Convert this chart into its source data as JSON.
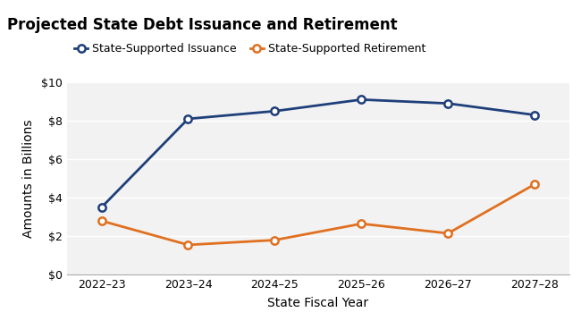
{
  "title": "Projected State Debt Issuance and Retirement",
  "xlabel": "State Fiscal Year",
  "ylabel": "Amounts in Billions",
  "categories": [
    "2022–23",
    "2023–24",
    "2024–25",
    "2025–26",
    "2026–27",
    "2027–28"
  ],
  "issuance": [
    3.5,
    8.1,
    8.5,
    9.1,
    8.9,
    8.3
  ],
  "retirement": [
    2.8,
    1.55,
    1.8,
    2.65,
    2.15,
    4.7
  ],
  "issuance_color": "#1f3f7a",
  "retirement_color": "#e07020",
  "background_title": "#d9d9d9",
  "background_main": "#ffffff",
  "background_plot": "#f2f2f2",
  "ylim": [
    0,
    10
  ],
  "yticks": [
    0,
    2,
    4,
    6,
    8,
    10
  ],
  "ytick_labels": [
    "$0",
    "$2",
    "$4",
    "$6",
    "$8",
    "$10"
  ],
  "legend_issuance": "State-Supported Issuance",
  "legend_retirement": "State-Supported Retirement",
  "title_fontsize": 12,
  "axis_label_fontsize": 10,
  "tick_fontsize": 9,
  "legend_fontsize": 9,
  "marker_size": 6,
  "line_width": 2.0
}
